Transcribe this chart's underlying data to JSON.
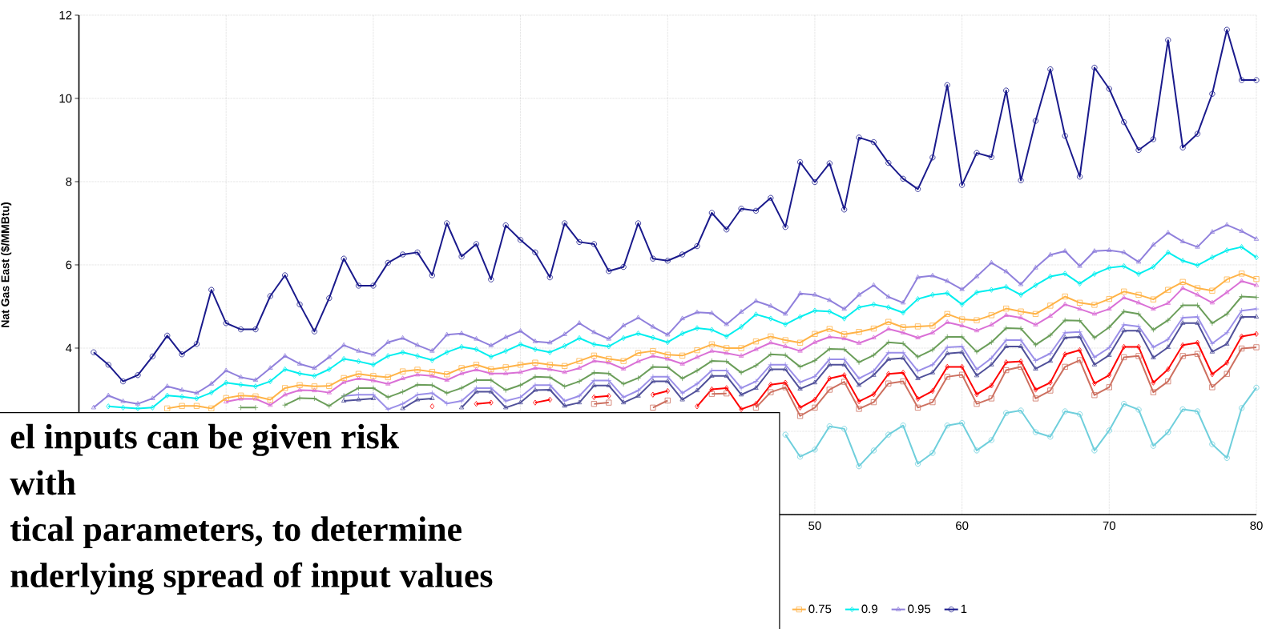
{
  "chart_data": {
    "type": "line",
    "ylabel": "Nat Gas East ($/MMBtu)",
    "x": [
      1,
      2,
      3,
      4,
      5,
      6,
      7,
      8,
      9,
      10,
      11,
      12,
      13,
      14,
      15,
      16,
      17,
      18,
      19,
      20,
      21,
      22,
      23,
      24,
      25,
      26,
      27,
      28,
      29,
      30,
      31,
      32,
      33,
      34,
      35,
      36,
      37,
      38,
      39,
      40,
      41,
      42,
      43,
      44,
      45,
      46,
      47,
      48,
      49,
      50,
      51,
      52,
      53,
      54,
      55,
      56,
      57,
      58,
      59,
      60,
      61,
      62,
      63,
      64,
      65,
      66,
      67,
      68,
      69,
      70,
      71,
      72,
      73,
      74,
      75,
      76,
      77,
      78,
      79,
      80
    ],
    "xlim": [
      0,
      80
    ],
    "ylim": [
      0,
      12
    ],
    "xticks": [
      {
        "value": 0,
        "label": null
      },
      {
        "value": 10,
        "label": null
      },
      {
        "value": 20,
        "label": null
      },
      {
        "value": 30,
        "label": null
      },
      {
        "value": 40,
        "label": null
      },
      50,
      60,
      70,
      80
    ],
    "yticks": [
      {
        "value": 0,
        "label": null
      },
      {
        "value": 2,
        "label": null
      },
      4,
      6,
      8,
      10,
      12
    ],
    "grid": true,
    "legend": "bottom",
    "line_style": "solid",
    "series": [
      {
        "color": "#6fcfdc",
        "marker": "circle",
        "values": [
          null,
          null,
          null,
          null,
          null,
          null,
          null,
          null,
          null,
          null,
          null,
          null,
          null,
          null,
          null,
          null,
          null,
          null,
          null,
          null,
          null,
          null,
          null,
          null,
          null,
          null,
          null,
          null,
          null,
          null,
          null,
          null,
          null,
          null,
          null,
          null,
          null,
          null,
          null,
          null,
          null,
          null,
          null,
          null,
          null,
          null,
          null,
          1.92,
          1.39,
          1.56,
          2.12,
          2.06,
          1.16,
          1.54,
          1.92,
          2.14,
          1.22,
          1.48,
          2.14,
          2.2,
          1.54,
          1.79,
          2.44,
          2.5,
          1.98,
          1.87,
          2.48,
          2.41,
          1.54,
          2.02,
          2.66,
          2.52,
          1.65,
          1.98,
          2.53,
          2.48,
          1.69,
          1.36,
          2.56,
          3.05
        ]
      },
      {
        "color": "#cd7060",
        "marker": "square",
        "values": [
          null,
          null,
          null,
          null,
          null,
          null,
          null,
          null,
          null,
          null,
          null,
          null,
          null,
          null,
          null,
          null,
          null,
          null,
          null,
          null,
          null,
          null,
          null,
          null,
          null,
          null,
          null,
          null,
          null,
          null,
          null,
          null,
          null,
          null,
          2.66,
          2.69,
          null,
          null,
          2.57,
          2.74,
          null,
          null,
          2.9,
          2.91,
          null,
          2.57,
          2.94,
          3.06,
          2.37,
          2.57,
          3.0,
          3.19,
          2.54,
          2.7,
          3.15,
          3.2,
          2.57,
          2.7,
          3.31,
          3.36,
          2.66,
          2.79,
          3.47,
          3.55,
          2.79,
          2.98,
          3.55,
          3.71,
          2.87,
          3.06,
          3.78,
          3.81,
          2.94,
          3.2,
          3.81,
          3.86,
          3.06,
          3.38,
          3.99,
          4.02
        ]
      },
      {
        "color": "#ff0000",
        "marker": "diamond",
        "values": [
          null,
          null,
          null,
          null,
          null,
          null,
          null,
          null,
          null,
          null,
          null,
          null,
          null,
          null,
          null,
          null,
          null,
          null,
          null,
          null,
          null,
          null,
          null,
          2.6,
          null,
          null,
          2.66,
          2.69,
          null,
          null,
          2.69,
          2.76,
          null,
          null,
          2.82,
          2.85,
          null,
          null,
          2.88,
          2.97,
          null,
          2.6,
          3.01,
          3.04,
          2.53,
          2.66,
          3.12,
          3.17,
          2.57,
          2.76,
          3.27,
          3.35,
          2.72,
          2.89,
          3.38,
          3.41,
          2.78,
          2.97,
          3.55,
          3.55,
          2.89,
          3.1,
          3.66,
          3.68,
          3.0,
          3.17,
          3.85,
          3.95,
          3.15,
          3.35,
          4.03,
          4.03,
          3.17,
          3.49,
          4.07,
          4.13,
          3.37,
          3.65,
          4.28,
          4.34
        ]
      },
      {
        "color": "#50509a",
        "marker": "triangle",
        "values": [
          null,
          null,
          null,
          null,
          null,
          null,
          null,
          null,
          null,
          null,
          null,
          null,
          null,
          null,
          null,
          null,
          null,
          2.73,
          2.76,
          2.79,
          null,
          2.55,
          2.76,
          2.79,
          null,
          2.57,
          2.95,
          2.95,
          2.57,
          2.69,
          2.99,
          3.0,
          2.61,
          2.69,
          3.1,
          3.1,
          2.69,
          2.85,
          3.2,
          3.2,
          2.76,
          2.98,
          3.33,
          3.33,
          2.88,
          3.04,
          3.49,
          3.49,
          3.02,
          3.17,
          3.6,
          3.6,
          3.11,
          3.35,
          3.73,
          3.76,
          3.27,
          3.41,
          3.87,
          3.9,
          3.34,
          3.6,
          4.04,
          4.04,
          3.5,
          3.69,
          4.25,
          4.27,
          3.6,
          3.83,
          4.42,
          4.42,
          3.77,
          4.02,
          4.6,
          4.6,
          3.91,
          4.1,
          4.75,
          4.75
        ]
      },
      {
        "color": "#9b8fe8",
        "marker": "cross",
        "values": [
          null,
          null,
          null,
          null,
          null,
          null,
          null,
          null,
          null,
          null,
          null,
          null,
          null,
          null,
          null,
          null,
          null,
          2.85,
          2.88,
          2.88,
          2.53,
          2.66,
          2.88,
          2.92,
          2.67,
          2.73,
          3.04,
          3.04,
          2.73,
          2.82,
          3.11,
          3.11,
          2.73,
          2.85,
          3.22,
          3.22,
          2.82,
          2.98,
          3.31,
          3.31,
          2.92,
          3.14,
          3.46,
          3.46,
          3.04,
          3.2,
          3.6,
          3.6,
          3.18,
          3.32,
          3.73,
          3.73,
          3.27,
          3.45,
          3.89,
          3.89,
          3.45,
          3.6,
          4.02,
          4.04,
          3.49,
          3.76,
          4.19,
          4.19,
          3.7,
          3.87,
          4.37,
          4.39,
          3.78,
          4.01,
          4.56,
          4.52,
          4.02,
          4.21,
          4.73,
          4.75,
          4.11,
          4.37,
          4.9,
          4.94
        ]
      },
      {
        "color": "#6b9e5a",
        "marker": "cross",
        "values": [
          null,
          null,
          null,
          null,
          null,
          null,
          null,
          null,
          null,
          null,
          2.57,
          2.57,
          null,
          2.63,
          2.8,
          2.79,
          2.61,
          2.85,
          3.04,
          3.04,
          2.82,
          2.95,
          3.12,
          3.11,
          2.92,
          3.04,
          3.23,
          3.23,
          2.99,
          3.11,
          3.31,
          3.3,
          3.08,
          3.2,
          3.41,
          3.39,
          3.14,
          3.28,
          3.55,
          3.54,
          3.27,
          3.46,
          3.69,
          3.68,
          3.41,
          3.58,
          3.85,
          3.83,
          3.55,
          3.7,
          3.98,
          3.97,
          3.66,
          3.83,
          4.14,
          4.11,
          3.79,
          3.96,
          4.27,
          4.27,
          3.91,
          4.14,
          4.48,
          4.47,
          4.08,
          4.31,
          4.67,
          4.66,
          4.25,
          4.5,
          4.88,
          4.82,
          4.44,
          4.67,
          5.03,
          5.03,
          4.6,
          4.82,
          5.24,
          5.22
        ]
      },
      {
        "color": "#da70d6",
        "marker": "triangle",
        "values": [
          null,
          null,
          null,
          null,
          null,
          null,
          null,
          null,
          null,
          2.71,
          2.78,
          2.78,
          2.63,
          2.88,
          2.99,
          2.98,
          2.93,
          3.18,
          3.27,
          3.22,
          3.14,
          3.27,
          3.36,
          3.33,
          3.23,
          3.39,
          3.48,
          3.39,
          3.39,
          3.42,
          3.52,
          3.49,
          3.42,
          3.52,
          3.69,
          3.65,
          3.5,
          3.68,
          3.81,
          3.74,
          3.62,
          3.78,
          3.93,
          3.88,
          3.81,
          3.97,
          4.13,
          4.04,
          3.93,
          4.14,
          4.27,
          4.23,
          4.12,
          4.25,
          4.46,
          4.37,
          4.25,
          4.37,
          4.62,
          4.54,
          4.42,
          4.56,
          4.79,
          4.73,
          4.56,
          4.77,
          5.05,
          4.94,
          4.82,
          4.94,
          5.21,
          5.09,
          4.94,
          5.08,
          5.44,
          5.28,
          5.09,
          5.34,
          5.61,
          5.51
        ]
      },
      {
        "name": "0.75",
        "color": "#ffb347",
        "marker": "square",
        "values": [
          null,
          null,
          null,
          null,
          null,
          2.55,
          2.61,
          2.61,
          2.55,
          2.8,
          2.86,
          2.84,
          2.76,
          3.04,
          3.11,
          3.08,
          3.09,
          3.28,
          3.38,
          3.33,
          3.3,
          3.44,
          3.48,
          3.43,
          3.37,
          3.52,
          3.6,
          3.49,
          3.54,
          3.6,
          3.65,
          3.6,
          3.57,
          3.69,
          3.82,
          3.74,
          3.69,
          3.88,
          3.93,
          3.84,
          3.82,
          3.95,
          4.09,
          4.0,
          4.0,
          4.16,
          4.28,
          4.19,
          4.13,
          4.34,
          4.46,
          4.33,
          4.39,
          4.47,
          4.63,
          4.5,
          4.52,
          4.54,
          4.82,
          4.69,
          4.67,
          4.79,
          4.95,
          4.88,
          4.82,
          5.02,
          5.24,
          5.09,
          5.04,
          5.18,
          5.36,
          5.28,
          5.17,
          5.4,
          5.59,
          5.44,
          5.38,
          5.65,
          5.79,
          5.66
        ]
      },
      {
        "name": "0.9",
        "color": "#00eeee",
        "marker": "diamond",
        "values": [
          null,
          2.6,
          2.57,
          2.55,
          2.57,
          2.86,
          2.83,
          2.79,
          2.93,
          3.17,
          3.12,
          3.08,
          3.2,
          3.49,
          3.39,
          3.33,
          3.49,
          3.74,
          3.68,
          3.6,
          3.81,
          3.9,
          3.81,
          3.71,
          3.9,
          4.03,
          3.97,
          3.79,
          3.93,
          4.09,
          3.97,
          3.9,
          4.05,
          4.24,
          4.09,
          4.04,
          4.24,
          4.35,
          4.25,
          4.14,
          4.35,
          4.48,
          4.44,
          4.28,
          4.51,
          4.81,
          4.71,
          4.57,
          4.75,
          4.9,
          4.88,
          4.71,
          4.98,
          5.05,
          4.98,
          4.85,
          5.18,
          5.28,
          5.32,
          5.05,
          5.34,
          5.4,
          5.47,
          5.28,
          5.51,
          5.72,
          5.79,
          5.55,
          5.78,
          5.93,
          5.97,
          5.78,
          5.95,
          6.3,
          6.1,
          5.99,
          6.18,
          6.35,
          6.43,
          6.18
        ]
      },
      {
        "name": "0.95",
        "color": "#9080dc",
        "marker": "triangle",
        "values": [
          2.57,
          2.86,
          2.72,
          2.66,
          2.79,
          3.08,
          2.99,
          2.92,
          3.14,
          3.46,
          3.3,
          3.23,
          3.52,
          3.81,
          3.62,
          3.52,
          3.78,
          4.07,
          3.93,
          3.84,
          4.14,
          4.24,
          4.07,
          3.93,
          4.32,
          4.35,
          4.22,
          4.06,
          4.26,
          4.41,
          4.16,
          4.13,
          4.33,
          4.6,
          4.38,
          4.22,
          4.54,
          4.73,
          4.51,
          4.32,
          4.71,
          4.86,
          4.84,
          4.57,
          4.87,
          5.13,
          5.01,
          4.82,
          5.31,
          5.28,
          5.15,
          4.94,
          5.28,
          5.51,
          5.23,
          5.09,
          5.7,
          5.74,
          5.61,
          5.41,
          5.72,
          6.05,
          5.84,
          5.53,
          5.93,
          6.24,
          6.33,
          5.97,
          6.33,
          6.35,
          6.3,
          6.07,
          6.48,
          6.77,
          6.56,
          6.43,
          6.79,
          6.96,
          6.81,
          6.62
        ]
      },
      {
        "name": "1",
        "color": "#1a1a8c",
        "marker": "circle",
        "values": [
          3.9,
          3.6,
          3.2,
          3.35,
          3.8,
          4.3,
          3.85,
          4.1,
          5.4,
          4.6,
          4.45,
          4.45,
          5.25,
          5.75,
          5.05,
          4.4,
          5.2,
          6.15,
          5.5,
          5.5,
          6.05,
          6.25,
          6.3,
          5.75,
          7.0,
          6.2,
          6.5,
          5.65,
          6.95,
          6.6,
          6.3,
          5.7,
          7.0,
          6.55,
          6.5,
          5.85,
          5.95,
          7.0,
          6.15,
          6.1,
          6.25,
          6.45,
          7.25,
          6.85,
          7.35,
          7.3,
          7.61,
          6.91,
          8.47,
          7.99,
          8.44,
          7.33,
          9.06,
          8.95,
          8.45,
          8.07,
          7.82,
          8.58,
          10.32,
          7.92,
          8.69,
          8.59,
          10.19,
          8.03,
          9.46,
          10.7,
          9.1,
          8.12,
          10.74,
          10.23,
          9.43,
          8.76,
          9.02,
          11.4,
          8.82,
          9.15,
          10.11,
          11.65,
          10.44,
          10.44
        ]
      }
    ],
    "annotations": [
      "el inputs can be given risk",
      "with",
      "tical parameters, to determine",
      "nderlying spread of input values"
    ]
  }
}
